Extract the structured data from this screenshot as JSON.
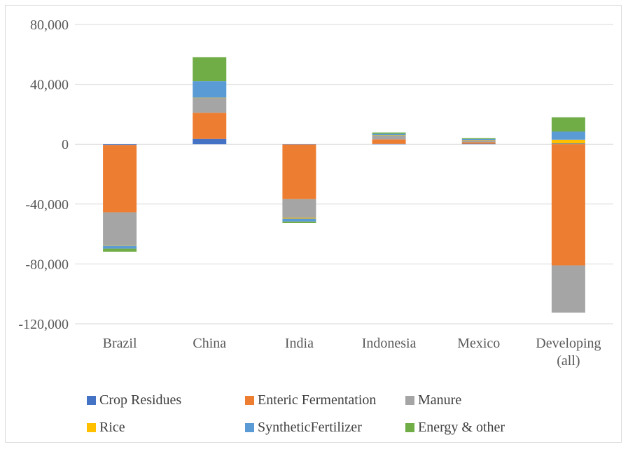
{
  "chart_data": {
    "type": "bar",
    "stacked": true,
    "title": "",
    "xlabel": "",
    "ylabel": "",
    "ylim": [
      -120000,
      80000
    ],
    "yticks": [
      80000,
      40000,
      0,
      -40000,
      -80000,
      -120000
    ],
    "ytick_labels": [
      "80,000",
      "40,000",
      "0",
      "-40,000",
      "-80,000",
      "-120,000"
    ],
    "grid": true,
    "legend_position": "bottom",
    "categories": [
      "Brazil",
      "China",
      "India",
      "Indonesia",
      "Mexico",
      "Developing (all)"
    ],
    "category_lines": [
      [
        "Brazil"
      ],
      [
        "China"
      ],
      [
        "India"
      ],
      [
        "Indonesia"
      ],
      [
        "Mexico"
      ],
      [
        "Developing",
        "(all)"
      ]
    ],
    "series": [
      {
        "name": "Crop Residues",
        "color": "#4472C4",
        "values": [
          -500,
          3500,
          -200,
          200,
          300,
          500
        ]
      },
      {
        "name": "Enteric Fermentation",
        "color": "#ED7D31",
        "values": [
          -45000,
          17500,
          -36500,
          3000,
          1000,
          -81000
        ]
      },
      {
        "name": "Manure",
        "color": "#A5A5A5",
        "values": [
          -22000,
          10000,
          -12500,
          2500,
          1500,
          -31500
        ]
      },
      {
        "name": "Rice",
        "color": "#FFC000",
        "values": [
          -300,
          100,
          -500,
          300,
          100,
          2500
        ]
      },
      {
        "name": "SyntheticFertilizer",
        "color": "#5B9BD5",
        "values": [
          -2000,
          11000,
          -2000,
          1000,
          500,
          5500
        ]
      },
      {
        "name": "Energy & other",
        "color": "#70AD47",
        "values": [
          -2000,
          16000,
          -1000,
          800,
          700,
          9500
        ]
      }
    ]
  }
}
